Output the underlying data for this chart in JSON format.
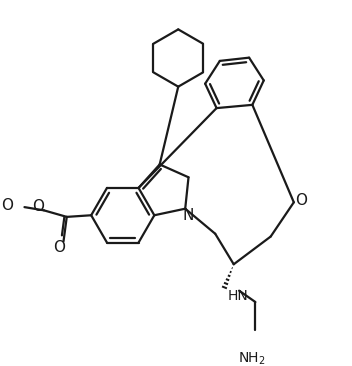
{
  "background_color": "#ffffff",
  "line_color": "#1a1a1a",
  "line_width": 1.6,
  "font_size": 10,
  "figsize": [
    3.52,
    3.66
  ],
  "dpi": 100,
  "xlim": [
    0,
    10
  ],
  "ylim": [
    0,
    10.4
  ]
}
